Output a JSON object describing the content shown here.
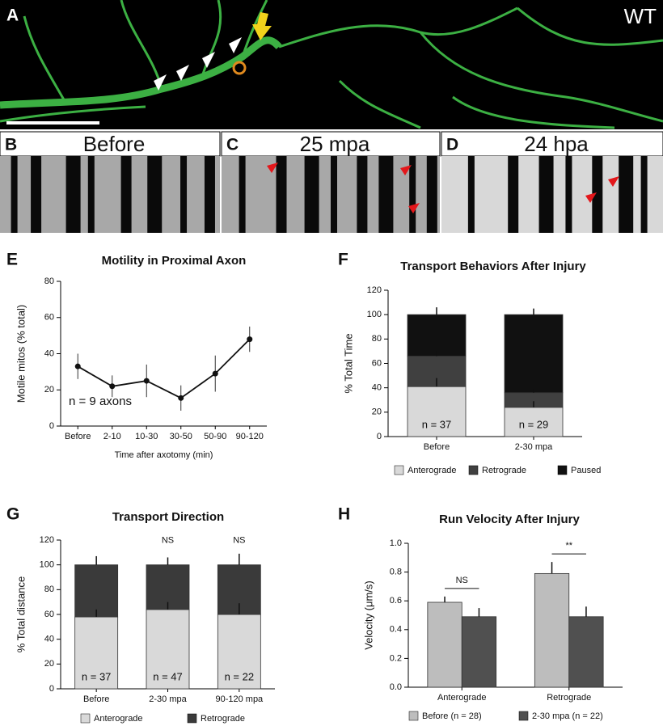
{
  "images": [
    {
      "panel": "A",
      "label": "WT"
    },
    {
      "panel": "B",
      "label": "Before"
    },
    {
      "panel": "C",
      "label": "25 mpa"
    },
    {
      "panel": "D",
      "label": "24 hpa"
    }
  ],
  "chart_data": [
    {
      "type": "line",
      "panel": "E",
      "title": "Motility in Proximal Axon",
      "x_label": "Time after axotomy (min)",
      "y_label": "Motile mitos (% total)",
      "annotation": "n = 9 axons",
      "categories": [
        "Before",
        "2-10",
        "10-30",
        "30-50",
        "50-90",
        "90-120"
      ],
      "values": [
        33,
        22,
        25,
        15.5,
        29,
        48
      ],
      "errors": [
        7,
        6,
        9,
        7,
        10,
        7
      ],
      "color": "#111111",
      "ylim": [
        0,
        80
      ],
      "yticks": [
        0,
        20,
        40,
        60,
        80
      ]
    },
    {
      "type": "stacked-bar",
      "panel": "F",
      "title": "Transport Behaviors After Injury",
      "y_label": "% Total Time",
      "categories": [
        "Before",
        "2-30 mpa"
      ],
      "n_labels": [
        "n = 37",
        "n = 29"
      ],
      "series": [
        {
          "name": "Anterograde",
          "color": "#d9d9d9",
          "values": [
            41,
            24
          ],
          "errors": [
            7,
            5
          ]
        },
        {
          "name": "Retrograde",
          "color": "#404040",
          "values": [
            25,
            12
          ],
          "errors": [
            4,
            3
          ]
        },
        {
          "name": "Paused",
          "color": "#111111",
          "values": [
            34,
            64
          ],
          "errors": [
            6,
            5
          ]
        }
      ],
      "ylim": [
        0,
        120
      ],
      "yticks": [
        0,
        20,
        40,
        60,
        80,
        100,
        120
      ]
    },
    {
      "type": "stacked-bar",
      "panel": "G",
      "title": "Transport Direction",
      "y_label": "% Total distance",
      "categories": [
        "Before",
        "2-30 mpa",
        "90-120 mpa"
      ],
      "n_labels": [
        "n = 37",
        "n = 47",
        "n = 22"
      ],
      "significance": [
        null,
        "NS",
        "NS"
      ],
      "series": [
        {
          "name": "Anterograde",
          "color": "#d9d9d9",
          "values": [
            58,
            64,
            60
          ],
          "errors": [
            6,
            6,
            9
          ]
        },
        {
          "name": "Retrograde",
          "color": "#3a3a3a",
          "values": [
            42,
            36,
            40
          ],
          "errors": [
            7,
            6,
            9
          ]
        }
      ],
      "ylim": [
        0,
        120
      ],
      "yticks": [
        0,
        20,
        40,
        60,
        80,
        100,
        120
      ]
    },
    {
      "type": "grouped-bar",
      "panel": "H",
      "title": "Run Velocity After Injury",
      "y_label": "Velocity (μm/s)",
      "categories": [
        "Anterograde",
        "Retrograde"
      ],
      "significance": [
        "NS",
        "**"
      ],
      "series": [
        {
          "name": "Before (n = 28)",
          "color": "#bdbdbd",
          "values": [
            0.59,
            0.79
          ],
          "errors": [
            0.04,
            0.08
          ]
        },
        {
          "name": "2-30 mpa (n = 22)",
          "color": "#505050",
          "values": [
            0.49,
            0.49
          ],
          "errors": [
            0.06,
            0.07
          ]
        }
      ],
      "ylim": [
        0,
        1
      ],
      "yticks": [
        {
          "value": 0,
          "label": "0.0"
        },
        0.2,
        0.4,
        0.6,
        0.8,
        {
          "value": 1,
          "label": "1.0"
        }
      ]
    }
  ]
}
